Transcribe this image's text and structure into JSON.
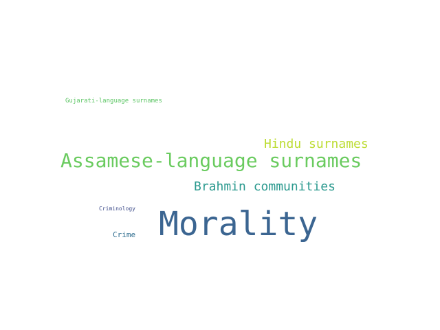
{
  "word_cloud": {
    "words": [
      {
        "text": "Morality",
        "color": "#3b6591"
      },
      {
        "text": "Assamese-language surnames",
        "color": "#6acb5f"
      },
      {
        "text": "Hindu surnames",
        "color": "#bcdc32"
      },
      {
        "text": "Brahmin communities",
        "color": "#2c9a8f"
      },
      {
        "text": "Gujarati-language surnames",
        "color": "#5bc563"
      },
      {
        "text": "Criminology",
        "color": "#3f4d8b"
      },
      {
        "text": "Crime",
        "color": "#2f6d8f"
      },
      {
        "text": "",
        "color": "#d6e03a"
      }
    ]
  }
}
